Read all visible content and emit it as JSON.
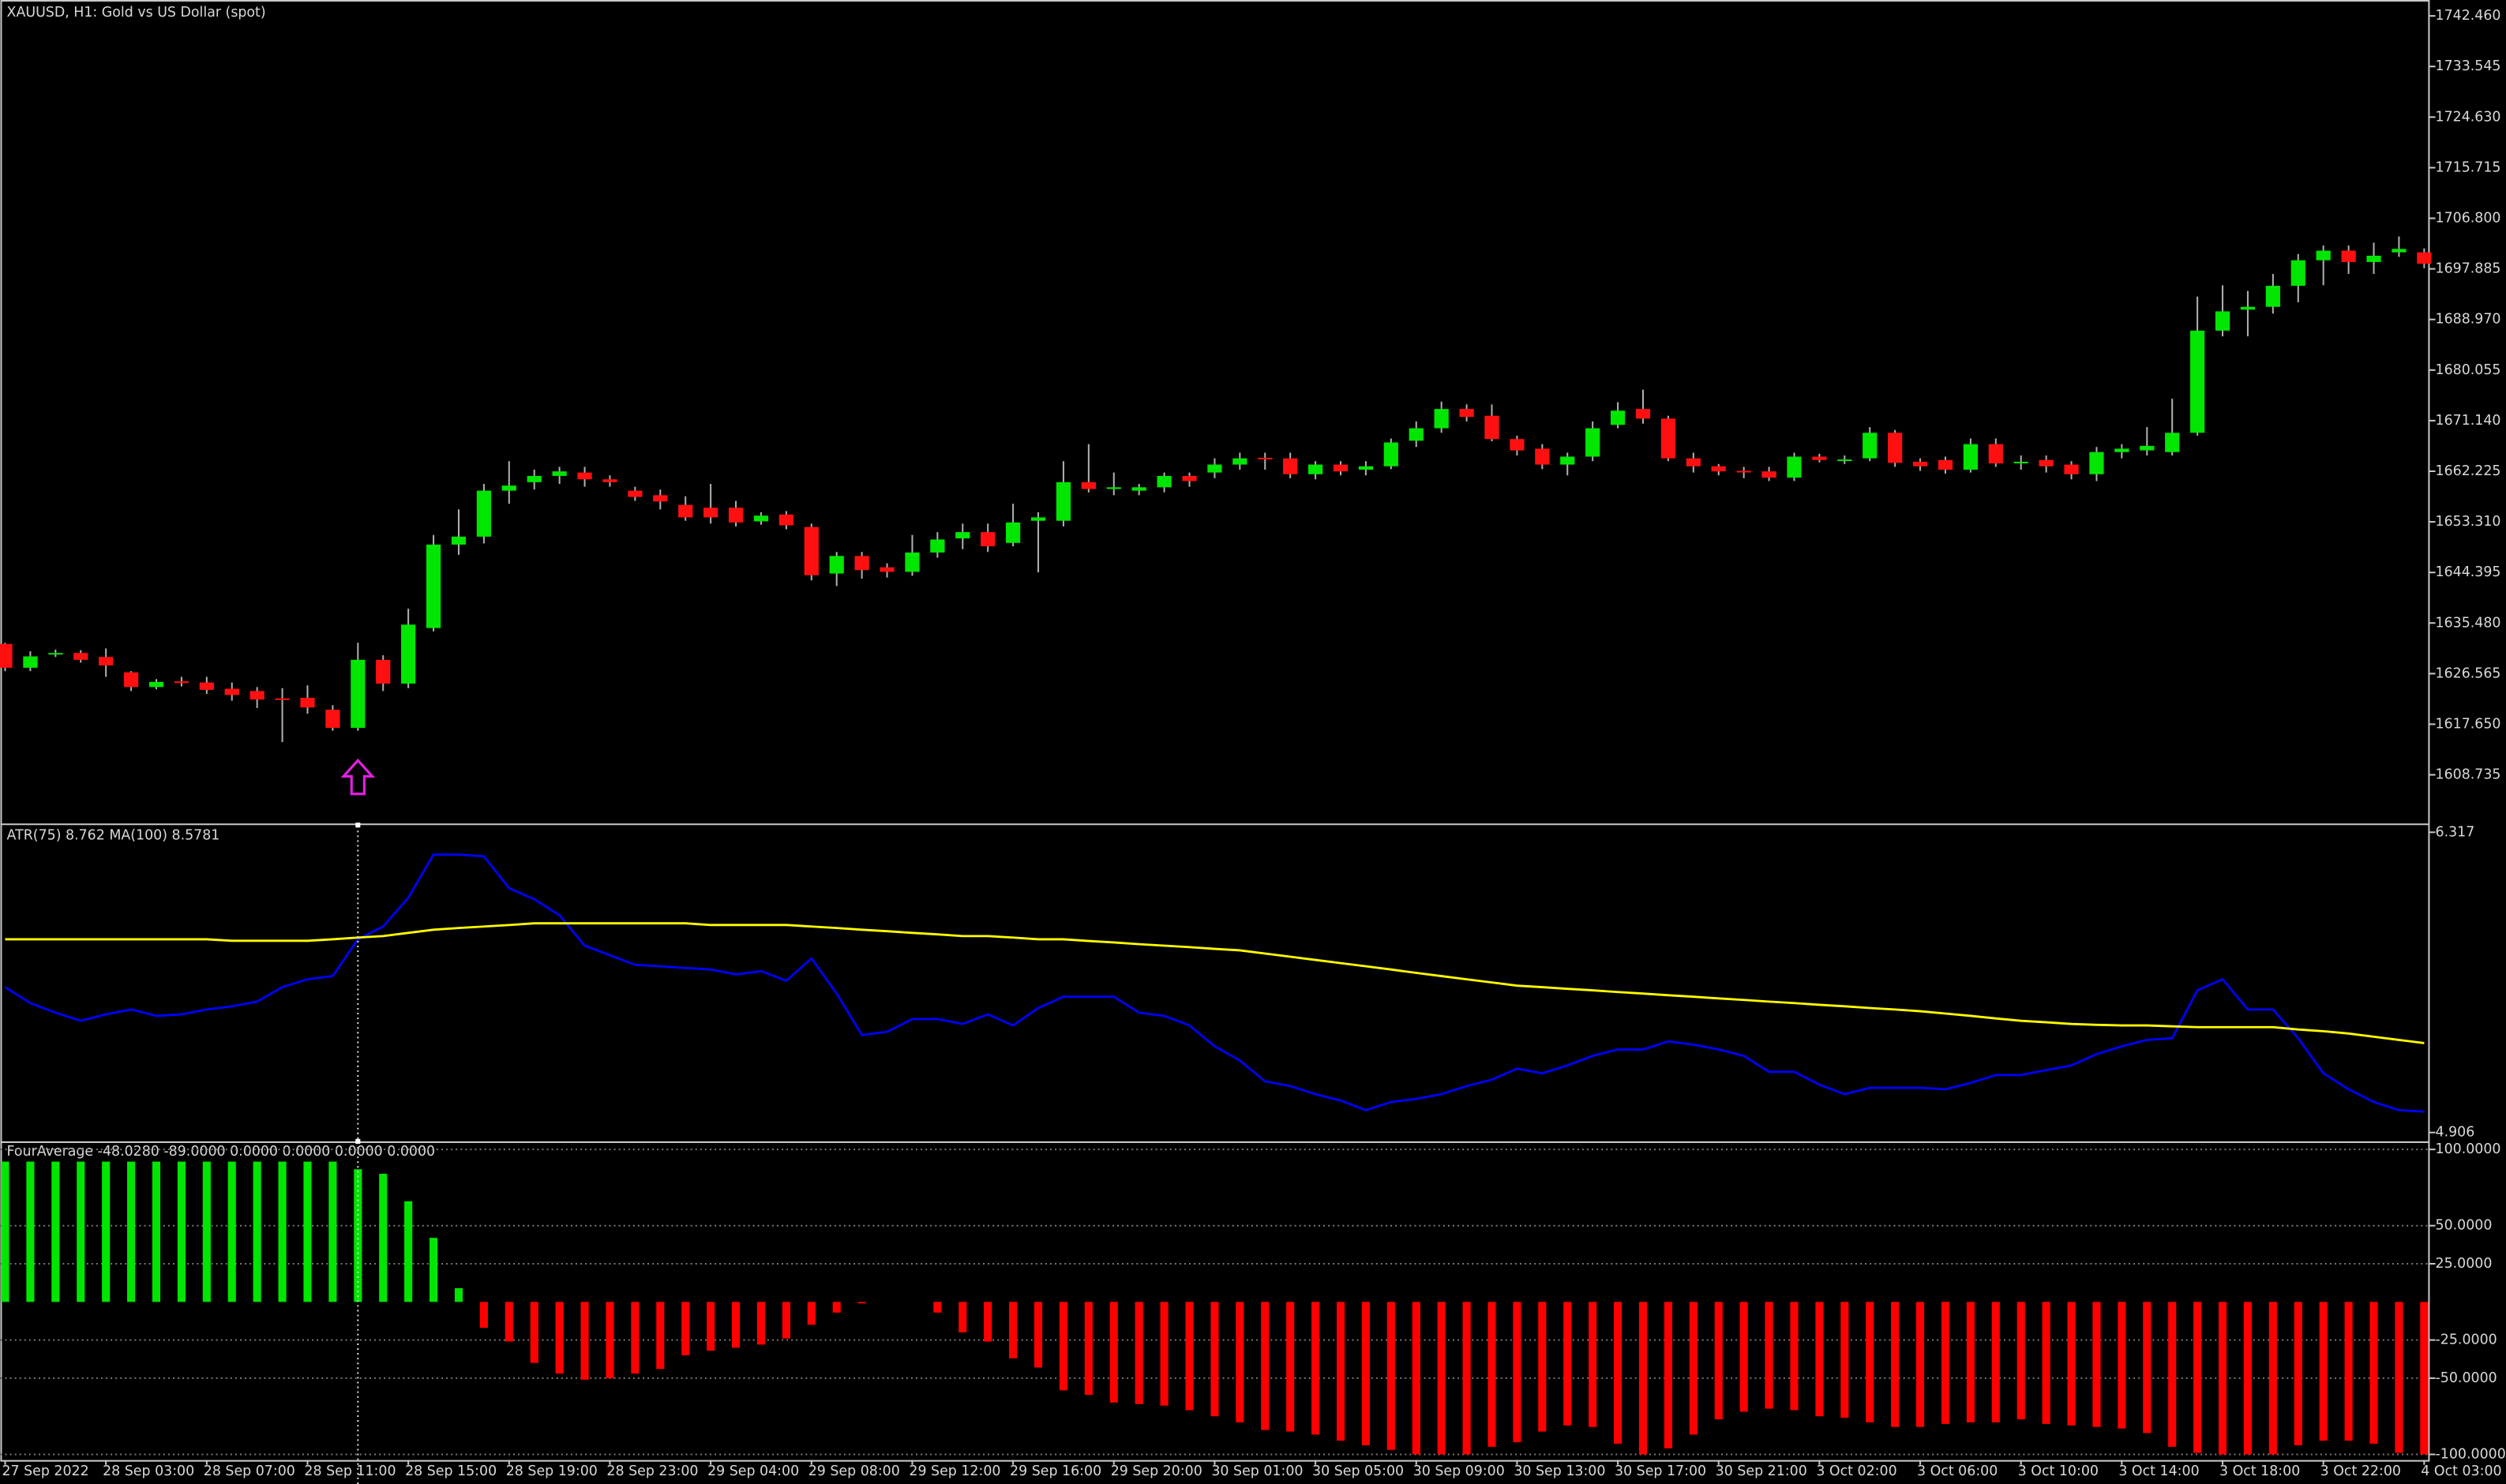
{
  "chart_data": [
    {
      "type": "candlestick",
      "title": "XAUUSD, H1:  Gold vs US Dollar (spot)",
      "categories": [
        "27 Sep 2022",
        null,
        null,
        null,
        "28 Sep 03:00",
        null,
        null,
        null,
        "28 Sep 07:00",
        null,
        null,
        null,
        "28 Sep 11:00",
        null,
        null,
        null,
        "28 Sep 15:00",
        null,
        null,
        null,
        "28 Sep 19:00",
        null,
        null,
        null,
        "28 Sep 23:00",
        null,
        null,
        null,
        "29 Sep 04:00",
        null,
        null,
        null,
        "29 Sep 08:00",
        null,
        null,
        null,
        "29 Sep 12:00",
        null,
        null,
        null,
        "29 Sep 16:00",
        null,
        null,
        null,
        "29 Sep 20:00",
        null,
        null,
        null,
        "30 Sep 01:00",
        null,
        null,
        null,
        "30 Sep 05:00",
        null,
        null,
        null,
        "30 Sep 09:00",
        null,
        null,
        null,
        "30 Sep 13:00",
        null,
        null,
        null,
        "30 Sep 17:00",
        null,
        null,
        null,
        "30 Sep 21:00",
        null,
        null,
        null,
        "3 Oct 02:00",
        null,
        null,
        null,
        "3 Oct 06:00",
        null,
        null,
        null,
        "3 Oct 10:00",
        null,
        null,
        null,
        "3 Oct 14:00",
        null,
        null,
        null,
        "3 Oct 18:00",
        null,
        null,
        null,
        "3 Oct 22:00",
        null,
        null,
        null,
        "4 Oct 03:00"
      ],
      "open": [
        1631.8,
        1627.6,
        1630,
        1630.2,
        1629.5,
        1626.8,
        1624.2,
        1625.2,
        1625,
        1623.9,
        1623.5,
        1622.2,
        1622.3,
        1620.2,
        1617,
        1629,
        1624.8,
        1634.6,
        1649.3,
        1650.7,
        1658.8,
        1660.3,
        1661.4,
        1662,
        1660.8,
        1658.8,
        1658,
        1656.3,
        1655.8,
        1655.8,
        1653.4,
        1654.6,
        1652.4,
        1644.2,
        1647.3,
        1645.3,
        1644.5,
        1647.9,
        1650.4,
        1651.5,
        1649.6,
        1653.5,
        1653.5,
        1660.3,
        1659.1,
        1658.8,
        1659.4,
        1661.4,
        1662,
        1663.4,
        1664.6,
        1664.5,
        1661.7,
        1663.4,
        1662.5,
        1663.1,
        1667.6,
        1669.8,
        1673.2,
        1672,
        1667.9,
        1666.2,
        1663.4,
        1664.8,
        1670.4,
        1673.2,
        1671.5,
        1664.5,
        1663.1,
        1662.3,
        1662.2,
        1661.1,
        1664.8,
        1664.3,
        1664.5,
        1669,
        1663.9,
        1664.2,
        1662.5,
        1667,
        1663.9,
        1664.2,
        1663.4,
        1661.7,
        1665.6,
        1665.9,
        1665.6,
        1669,
        1687,
        1690.7,
        1691.2,
        1694.9,
        1699.4,
        1701.1,
        1699.1,
        1700.8,
        1700.8
      ],
      "high": [
        1632,
        1630.5,
        1630.8,
        1630.7,
        1631,
        1627,
        1625.6,
        1626,
        1626,
        1625,
        1624.2,
        1624,
        1624.5,
        1621,
        1632,
        1629.8,
        1638,
        1651,
        1655.5,
        1660,
        1664,
        1662.5,
        1663,
        1663,
        1661.5,
        1659.5,
        1659,
        1657.8,
        1660,
        1657,
        1655,
        1655.2,
        1653,
        1648,
        1648,
        1646,
        1651,
        1651.5,
        1653,
        1653,
        1656.5,
        1655,
        1664,
        1667,
        1662,
        1660,
        1662,
        1662,
        1664.5,
        1665.5,
        1665.5,
        1665.5,
        1664,
        1664,
        1664,
        1668,
        1671,
        1674.5,
        1674,
        1674,
        1668.5,
        1667,
        1665.5,
        1671,
        1674.4,
        1676.6,
        1672,
        1665.5,
        1663.5,
        1663,
        1663,
        1665.5,
        1665.3,
        1665,
        1670,
        1669.5,
        1664.5,
        1664.8,
        1668,
        1668,
        1665,
        1665,
        1664,
        1666.5,
        1667,
        1670,
        1675,
        1693,
        1695,
        1694,
        1697,
        1700.5,
        1702,
        1702,
        1702.5,
        1703.6,
        1701.5
      ],
      "low": [
        1627,
        1627,
        1629.5,
        1628.5,
        1626,
        1623.5,
        1623.8,
        1624.3,
        1623,
        1621.8,
        1620.5,
        1614.5,
        1619.5,
        1616.5,
        1616.5,
        1623.5,
        1624,
        1634,
        1647.5,
        1649.5,
        1656.5,
        1659,
        1660,
        1659.5,
        1659.5,
        1657,
        1655.5,
        1653.5,
        1653,
        1652.5,
        1652.8,
        1652,
        1643,
        1642,
        1643.3,
        1643.5,
        1643.8,
        1647,
        1648.5,
        1648,
        1649,
        1644.4,
        1652.5,
        1658.5,
        1658,
        1658,
        1658.5,
        1659.5,
        1661,
        1662.5,
        1662.5,
        1661,
        1660.8,
        1661.5,
        1661.5,
        1662.6,
        1666.5,
        1669,
        1671,
        1667.5,
        1665,
        1662.6,
        1661.5,
        1664,
        1669.8,
        1670.6,
        1664,
        1662,
        1661.5,
        1661,
        1660.5,
        1660.5,
        1663.8,
        1663.5,
        1664,
        1663,
        1662.3,
        1661.8,
        1662,
        1663,
        1662.5,
        1662,
        1660.8,
        1660.5,
        1664.5,
        1665,
        1665,
        1668.5,
        1686,
        1686,
        1690,
        1692,
        1695,
        1697,
        1697,
        1700,
        1698
      ],
      "close": [
        1627.6,
        1629.6,
        1630.2,
        1629,
        1628,
        1624.2,
        1625.1,
        1624.9,
        1623.7,
        1622.8,
        1622,
        1622,
        1620.6,
        1617,
        1629,
        1624.8,
        1635.2,
        1649.3,
        1650.7,
        1658.8,
        1659.7,
        1661.4,
        1662.2,
        1660.8,
        1660.3,
        1657.7,
        1656.9,
        1654.1,
        1654.1,
        1653.2,
        1654.4,
        1652.7,
        1643.9,
        1647.3,
        1644.8,
        1644.5,
        1647.9,
        1650.2,
        1651.5,
        1649,
        1653.2,
        1654.1,
        1660.3,
        1659.1,
        1659.4,
        1659.4,
        1661.4,
        1660.5,
        1663.4,
        1664.5,
        1664.5,
        1661.7,
        1663.4,
        1662.2,
        1663.1,
        1667.3,
        1669.8,
        1673.2,
        1671.8,
        1667.9,
        1665.9,
        1663.4,
        1664.8,
        1669.8,
        1672.9,
        1671.5,
        1664.5,
        1663.1,
        1662.2,
        1662.2,
        1661.1,
        1664.8,
        1664.2,
        1664.3,
        1669,
        1663.7,
        1663.1,
        1662.5,
        1667,
        1663.6,
        1663.9,
        1663.1,
        1661.7,
        1665.6,
        1666.2,
        1666.7,
        1669,
        1687,
        1690.4,
        1691.2,
        1694.9,
        1699.4,
        1701.1,
        1699.1,
        1700.2,
        1701.4,
        1698.8
      ],
      "up_color": "#00e600",
      "down_color": "#ff1010",
      "ylim": [
        1600.3,
        1744.7
      ],
      "yticks": [
        {
          "value": 1742.46,
          "label": "1742.460"
        },
        {
          "value": 1733.545,
          "label": "1733.545"
        },
        {
          "value": 1724.63,
          "label": "1724.630"
        },
        {
          "value": 1715.715,
          "label": "1715.715"
        },
        {
          "value": 1706.8,
          "label": "1706.800"
        },
        {
          "value": 1697.885,
          "label": "1697.885"
        },
        {
          "value": 1688.97,
          "label": "1688.970"
        },
        {
          "value": 1680.055,
          "label": "1680.055"
        },
        {
          "value": 1671.14,
          "label": "1671.140"
        },
        {
          "value": 1662.225,
          "label": "1662.225"
        },
        {
          "value": 1653.31,
          "label": "1653.310"
        },
        {
          "value": 1644.395,
          "label": "1644.395"
        },
        {
          "value": 1635.48,
          "label": "1635.480"
        },
        {
          "value": 1626.565,
          "label": "1626.565"
        },
        {
          "value": 1617.65,
          "label": "1617.650"
        },
        {
          "value": 1608.735,
          "label": "1608.735"
        }
      ],
      "grid": false
    },
    {
      "type": "line",
      "title": "ATR(75) 8.762 MA(100) 8.5781",
      "series": [
        {
          "color": "#0000ff",
          "values": [
            5.589,
            5.514,
            5.469,
            5.431,
            5.461,
            5.484,
            5.454,
            5.461,
            5.484,
            5.499,
            5.521,
            5.589,
            5.626,
            5.641,
            5.814,
            5.874,
            6.009,
            6.212,
            6.212,
            6.204,
            6.054,
            6.002,
            5.927,
            5.784,
            5.739,
            5.694,
            5.687,
            5.679,
            5.672,
            5.649,
            5.664,
            5.619,
            5.724,
            5.559,
            5.364,
            5.379,
            5.439,
            5.439,
            5.416,
            5.461,
            5.409,
            5.491,
            5.544,
            5.544,
            5.544,
            5.469,
            5.454,
            5.409,
            5.311,
            5.244,
            5.146,
            5.124,
            5.086,
            5.056,
            5.011,
            5.049,
            5.064,
            5.086,
            5.124,
            5.154,
            5.206,
            5.184,
            5.221,
            5.266,
            5.296,
            5.296,
            5.334,
            5.319,
            5.296,
            5.266,
            5.191,
            5.191,
            5.131,
            5.086,
            5.116,
            5.116,
            5.116,
            5.109,
            5.139,
            5.176,
            5.176,
            5.199,
            5.221,
            5.274,
            5.311,
            5.341,
            5.349,
            5.574,
            5.626,
            5.484,
            5.484,
            5.349,
            5.184,
            5.109,
            5.049,
            5.011,
            5.004
          ]
        },
        {
          "color": "#ffff00",
          "values": [
            5.814,
            5.814,
            5.814,
            5.814,
            5.814,
            5.814,
            5.814,
            5.814,
            5.814,
            5.807,
            5.807,
            5.807,
            5.807,
            5.814,
            5.822,
            5.829,
            5.844,
            5.859,
            5.867,
            5.874,
            5.881,
            5.889,
            5.889,
            5.889,
            5.889,
            5.889,
            5.889,
            5.889,
            5.881,
            5.881,
            5.881,
            5.881,
            5.874,
            5.867,
            5.859,
            5.852,
            5.844,
            5.837,
            5.829,
            5.829,
            5.822,
            5.814,
            5.814,
            5.806,
            5.799,
            5.791,
            5.784,
            5.777,
            5.769,
            5.762,
            5.747,
            5.732,
            5.717,
            5.702,
            5.687,
            5.672,
            5.656,
            5.641,
            5.626,
            5.611,
            5.596,
            5.589,
            5.581,
            5.574,
            5.566,
            5.559,
            5.551,
            5.544,
            5.536,
            5.529,
            5.521,
            5.514,
            5.506,
            5.499,
            5.491,
            5.484,
            5.476,
            5.465,
            5.454,
            5.442,
            5.431,
            5.424,
            5.416,
            5.412,
            5.409,
            5.409,
            5.405,
            5.401,
            5.401,
            5.401,
            5.401,
            5.39,
            5.382,
            5.371,
            5.356,
            5.341,
            5.326
          ]
        }
      ],
      "ylim": [
        4.868,
        6.347
      ],
      "yticks": [
        6.317,
        4.906
      ]
    },
    {
      "type": "bar",
      "title": "FourAverage -48.0280 -89.0000 0.0000 0.0000 0.0000 0.0000",
      "values": [
        92,
        92,
        92,
        92,
        92,
        92,
        92,
        92,
        92,
        92,
        92,
        92,
        92,
        92,
        87,
        84,
        66,
        42,
        9,
        -17,
        -26,
        -40,
        -47,
        -51,
        -50,
        -47,
        -44,
        -35,
        -32,
        -30,
        -28,
        -24,
        -15,
        -7,
        -1,
        0,
        0,
        -7,
        -20,
        -26,
        -37,
        -43,
        -58,
        -61,
        -66,
        -67,
        -68,
        -71,
        -75,
        -79,
        -84,
        -85,
        -87,
        -91,
        -94,
        -97,
        -100,
        -100,
        -100,
        -95,
        -92,
        -85,
        -81,
        -82,
        -93,
        -100,
        -96,
        -87,
        -77,
        -72,
        -70,
        -71,
        -75,
        -76,
        -79,
        -82,
        -82,
        -80,
        -79,
        -79,
        -77,
        -80,
        -81,
        -82,
        -83,
        -86,
        -95,
        -99,
        -100,
        -100,
        -100,
        -94,
        -91,
        -91,
        -93,
        -99,
        -100
      ],
      "up_color": "#00e600",
      "down_color": "#ff0000",
      "ylim": [
        -103.7,
        103.7
      ],
      "yticks": [
        {
          "value": 100,
          "label": "100.0000"
        },
        {
          "value": 50,
          "label": "50.0000"
        },
        {
          "value": 25,
          "label": "25.0000"
        },
        {
          "value": -25,
          "label": "-25.0000"
        },
        {
          "value": -50,
          "label": "-50.0000"
        },
        {
          "value": -100,
          "label": "-100.0000"
        }
      ],
      "grid": true
    }
  ]
}
